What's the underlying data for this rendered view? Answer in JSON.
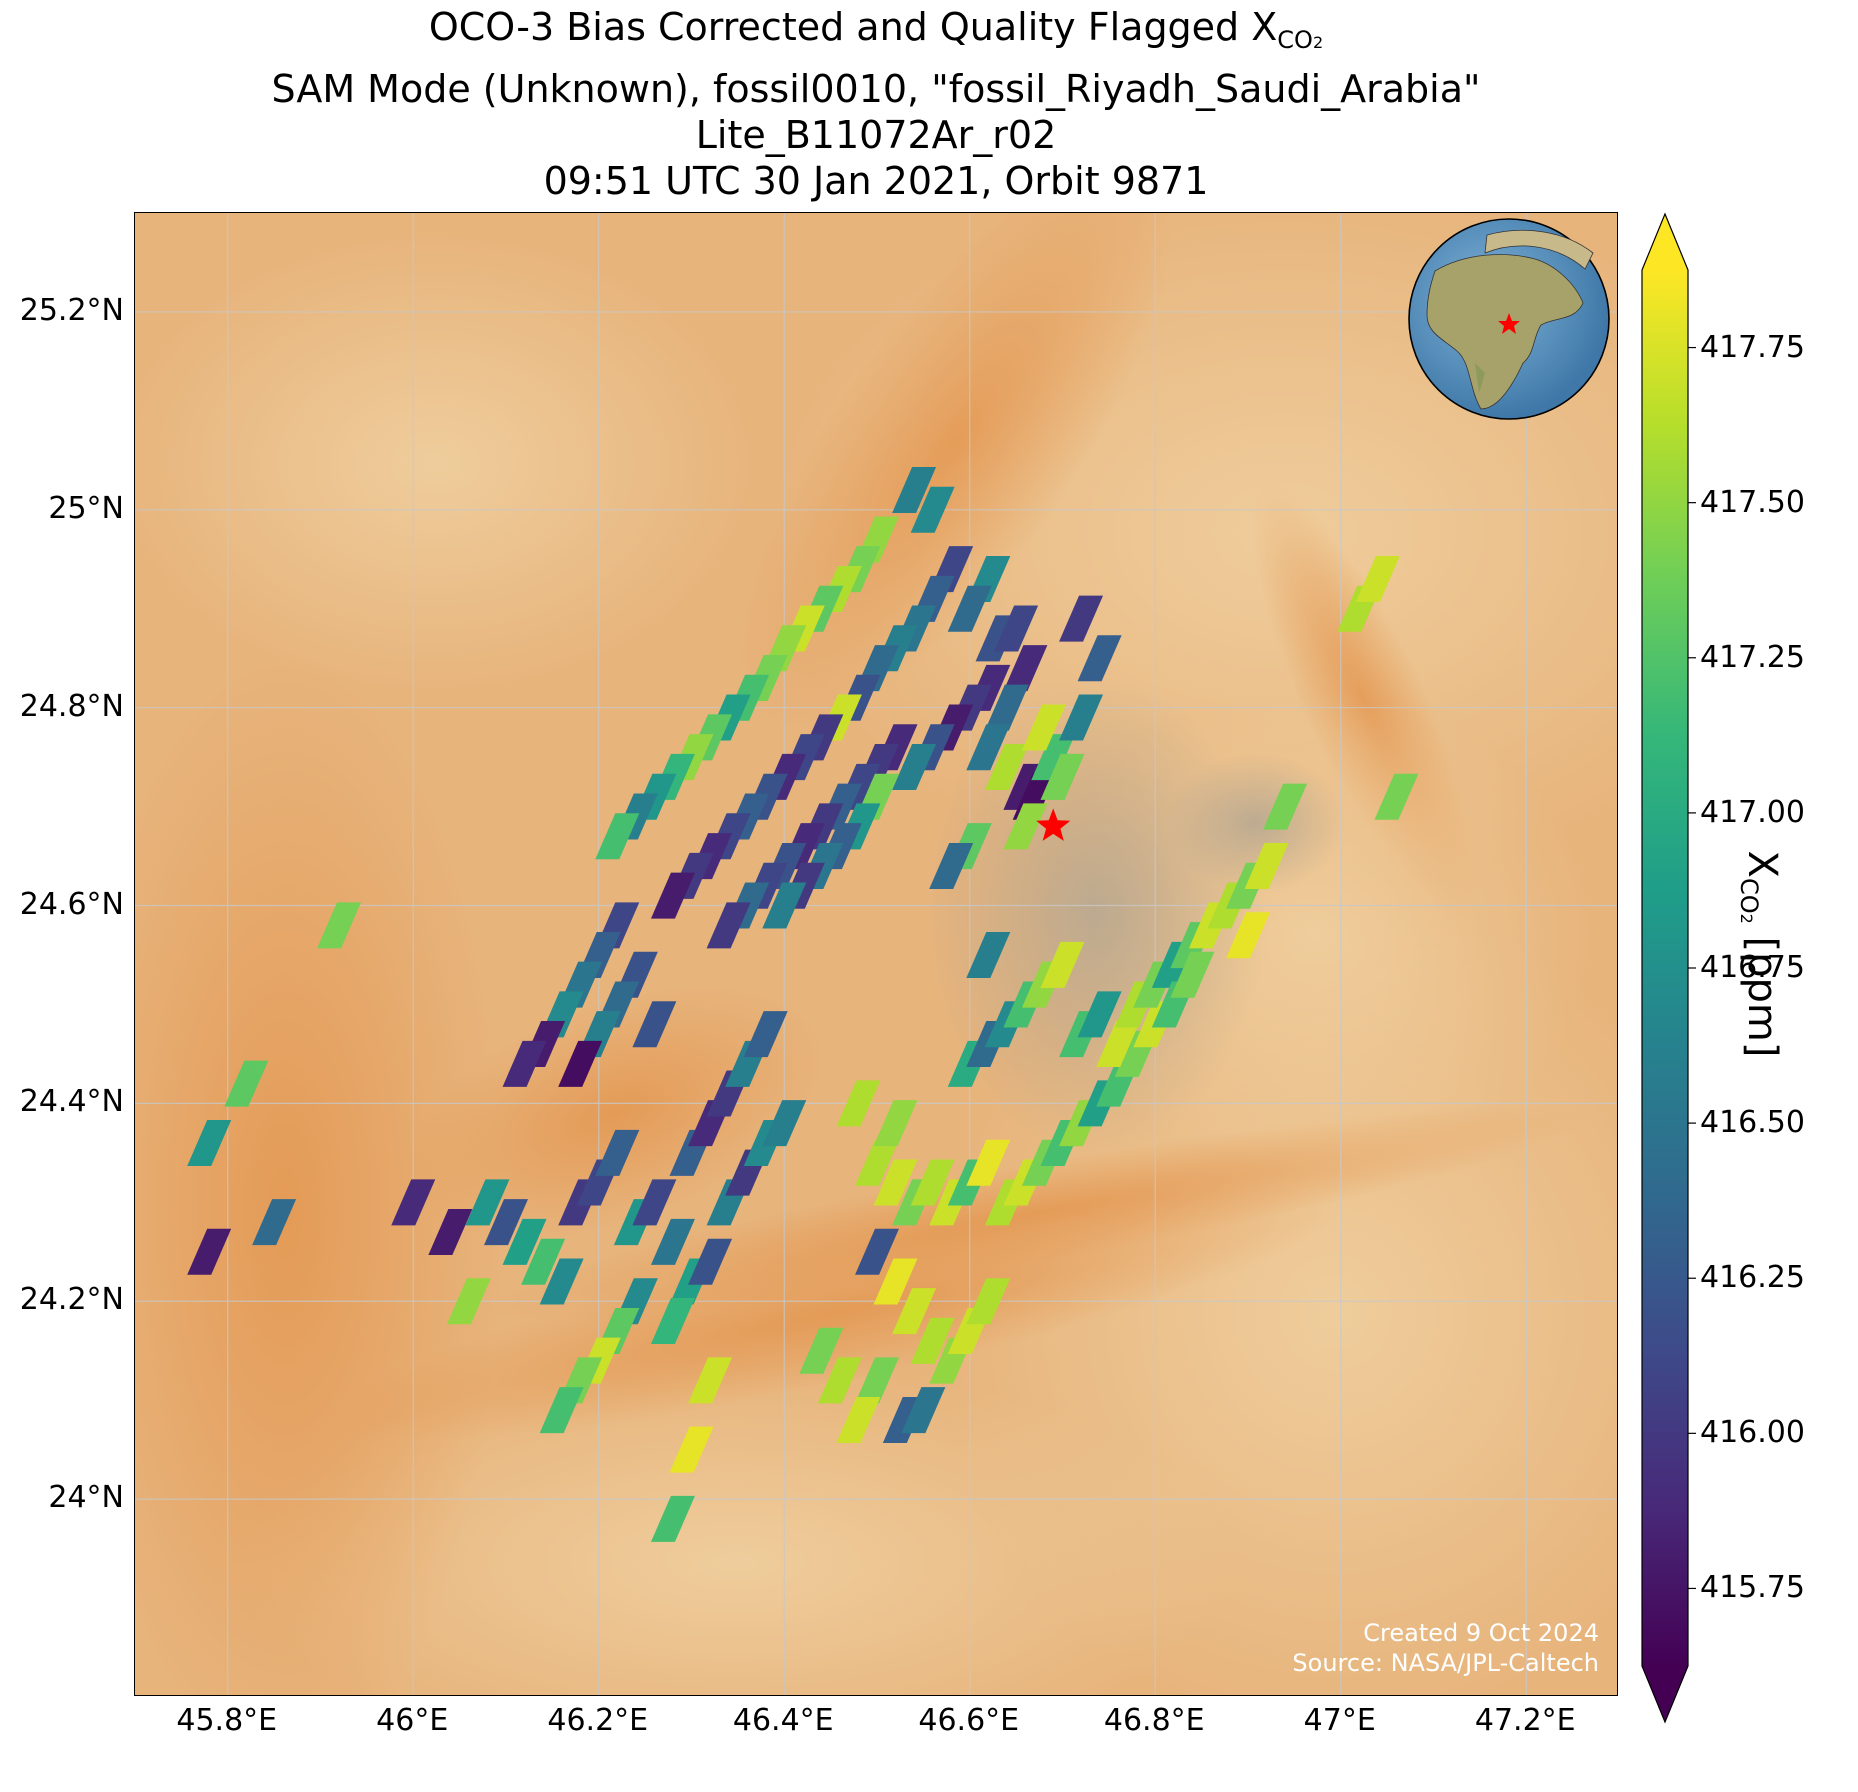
{
  "title": {
    "line1_prefix": "OCO-3 Bias Corrected and Quality Flagged X",
    "line1_subscript": "CO",
    "line1_subsubscript": "2",
    "line2": "SAM Mode (Unknown), fossil0010, \"fossil_Riyadh_Saudi_Arabia\"",
    "line3": "Lite_B11072Ar_r02",
    "line4": "09:51 UTC 30 Jan 2021, Orbit 9871"
  },
  "map": {
    "extent": {
      "lon_min": 45.7,
      "lon_max": 47.3,
      "lat_min": 23.8,
      "lat_max": 25.3
    },
    "lon_ticks": [
      {
        "value": 45.8,
        "label": "45.8°E"
      },
      {
        "value": 46.0,
        "label": "46°E"
      },
      {
        "value": 46.2,
        "label": "46.2°E"
      },
      {
        "value": 46.4,
        "label": "46.4°E"
      },
      {
        "value": 46.6,
        "label": "46.6°E"
      },
      {
        "value": 46.8,
        "label": "46.8°E"
      },
      {
        "value": 47.0,
        "label": "47°E"
      },
      {
        "value": 47.2,
        "label": "47.2°E"
      }
    ],
    "lat_ticks": [
      {
        "value": 24.0,
        "label": "24°N"
      },
      {
        "value": 24.2,
        "label": "24.2°N"
      },
      {
        "value": 24.4,
        "label": "24.4°N"
      },
      {
        "value": 24.6,
        "label": "24.6°N"
      },
      {
        "value": 24.8,
        "label": "24.8°N"
      },
      {
        "value": 25.0,
        "label": "25°N"
      },
      {
        "value": 25.2,
        "label": "25.2°N"
      }
    ],
    "target": {
      "name": "fossil_Riyadh_Saudi_Arabia",
      "lon": 46.69,
      "lat": 24.68,
      "marker": "red-star",
      "color": "#ff0000"
    },
    "grid": true,
    "grid_color": "#c8c8c8",
    "basemap": "satellite imagery (desert)",
    "inset": "globe-icon with red star over Arabian Peninsula (top-right)",
    "credit_line1": "Created 9 Oct 2024",
    "credit_line2": "Source: NASA/JPL-Caltech"
  },
  "colorbar": {
    "colormap": "viridis",
    "vmin": 415.625,
    "vmax": 417.875,
    "extend": "both",
    "ticks": [
      "415.75",
      "416.00",
      "416.25",
      "416.50",
      "416.75",
      "417.00",
      "417.25",
      "417.50",
      "417.75"
    ],
    "label_prefix": "X",
    "label_subscript": "CO",
    "label_subsubscript": "2",
    "label_suffix": " [ppm]",
    "stops": [
      "#440154",
      "#482878",
      "#3e4989",
      "#31688e",
      "#26828e",
      "#1f9e89",
      "#35b779",
      "#6ece58",
      "#b5de2b",
      "#fde725"
    ]
  },
  "chart_data": {
    "type": "scatter",
    "description": "XCO2 soundings (ppm) at lon/lat footprint centers",
    "xlabel": "",
    "ylabel": "",
    "x_unit": "degrees East",
    "y_unit": "degrees North",
    "points": [
      [
        46.54,
        25.02,
        416.6
      ],
      [
        46.56,
        25.0,
        416.7
      ],
      [
        46.5,
        24.97,
        417.5
      ],
      [
        46.48,
        24.94,
        417.4
      ],
      [
        46.46,
        24.92,
        417.6
      ],
      [
        46.44,
        24.9,
        417.3
      ],
      [
        46.42,
        24.88,
        417.7
      ],
      [
        46.4,
        24.86,
        417.5
      ],
      [
        46.38,
        24.83,
        417.4
      ],
      [
        46.36,
        24.81,
        417.2
      ],
      [
        46.34,
        24.79,
        416.9
      ],
      [
        46.32,
        24.77,
        417.3
      ],
      [
        46.3,
        24.75,
        417.5
      ],
      [
        46.28,
        24.73,
        417.1
      ],
      [
        46.26,
        24.71,
        416.8
      ],
      [
        46.24,
        24.69,
        416.6
      ],
      [
        46.22,
        24.67,
        417.2
      ],
      [
        46.58,
        24.94,
        416.1
      ],
      [
        46.56,
        24.91,
        416.3
      ],
      [
        46.54,
        24.88,
        416.5
      ],
      [
        46.52,
        24.86,
        416.6
      ],
      [
        46.5,
        24.84,
        416.4
      ],
      [
        46.48,
        24.81,
        416.2
      ],
      [
        46.46,
        24.79,
        417.7
      ],
      [
        46.44,
        24.77,
        416.0
      ],
      [
        46.42,
        24.75,
        416.1
      ],
      [
        46.4,
        24.73,
        415.9
      ],
      [
        46.38,
        24.71,
        416.2
      ],
      [
        46.36,
        24.69,
        416.3
      ],
      [
        46.34,
        24.67,
        416.1
      ],
      [
        46.32,
        24.65,
        415.9
      ],
      [
        46.3,
        24.63,
        416.0
      ],
      [
        46.28,
        24.61,
        415.8
      ],
      [
        46.52,
        24.76,
        415.9
      ],
      [
        46.5,
        24.74,
        416.0
      ],
      [
        46.48,
        24.72,
        416.1
      ],
      [
        46.46,
        24.7,
        416.3
      ],
      [
        46.44,
        24.68,
        416.0
      ],
      [
        46.42,
        24.66,
        415.9
      ],
      [
        46.4,
        24.64,
        416.2
      ],
      [
        46.38,
        24.62,
        416.1
      ],
      [
        46.36,
        24.6,
        416.4
      ],
      [
        46.34,
        24.58,
        416.0
      ],
      [
        46.62,
        24.82,
        415.9
      ],
      [
        46.6,
        24.8,
        416.0
      ],
      [
        46.58,
        24.78,
        415.8
      ],
      [
        46.56,
        24.76,
        416.2
      ],
      [
        46.54,
        24.74,
        416.6
      ],
      [
        46.5,
        24.71,
        417.4
      ],
      [
        46.48,
        24.68,
        416.8
      ],
      [
        46.46,
        24.66,
        416.3
      ],
      [
        46.44,
        24.64,
        416.5
      ],
      [
        46.42,
        24.62,
        416.0
      ],
      [
        46.4,
        24.6,
        416.6
      ],
      [
        46.62,
        24.93,
        416.7
      ],
      [
        46.6,
        24.9,
        416.4
      ],
      [
        46.63,
        24.87,
        416.2
      ],
      [
        46.65,
        24.88,
        416.1
      ],
      [
        46.66,
        24.84,
        415.9
      ],
      [
        46.64,
        24.8,
        416.4
      ],
      [
        46.62,
        24.76,
        416.5
      ],
      [
        46.64,
        24.74,
        417.6
      ],
      [
        46.66,
        24.72,
        415.8
      ],
      [
        46.67,
        24.71,
        415.7
      ],
      [
        46.69,
        24.75,
        417.2
      ],
      [
        46.7,
        24.73,
        417.4
      ],
      [
        46.72,
        24.79,
        416.6
      ],
      [
        46.68,
        24.78,
        417.7
      ],
      [
        46.72,
        24.89,
        416.0
      ],
      [
        46.74,
        24.85,
        416.3
      ],
      [
        46.66,
        24.68,
        417.5
      ],
      [
        46.6,
        24.66,
        417.3
      ],
      [
        46.58,
        24.64,
        416.4
      ],
      [
        46.22,
        24.58,
        416.1
      ],
      [
        46.2,
        24.55,
        416.3
      ],
      [
        46.18,
        24.52,
        416.5
      ],
      [
        46.16,
        24.49,
        416.7
      ],
      [
        46.14,
        24.46,
        415.8
      ],
      [
        46.12,
        24.44,
        415.9
      ],
      [
        46.24,
        24.53,
        416.2
      ],
      [
        46.22,
        24.5,
        416.4
      ],
      [
        46.2,
        24.47,
        416.6
      ],
      [
        46.18,
        24.44,
        415.7
      ],
      [
        46.26,
        24.48,
        416.2
      ],
      [
        45.92,
        24.58,
        417.4
      ],
      [
        45.82,
        24.42,
        417.3
      ],
      [
        45.78,
        24.36,
        416.8
      ],
      [
        45.78,
        24.25,
        415.8
      ],
      [
        45.85,
        24.28,
        416.4
      ],
      [
        46.0,
        24.3,
        415.9
      ],
      [
        46.04,
        24.27,
        415.8
      ],
      [
        46.06,
        24.2,
        417.5
      ],
      [
        46.08,
        24.3,
        416.8
      ],
      [
        46.1,
        24.28,
        416.2
      ],
      [
        46.12,
        24.26,
        416.9
      ],
      [
        46.14,
        24.24,
        417.2
      ],
      [
        46.16,
        24.22,
        416.7
      ],
      [
        46.18,
        24.3,
        416.0
      ],
      [
        46.2,
        24.32,
        416.1
      ],
      [
        46.22,
        24.35,
        416.3
      ],
      [
        46.24,
        24.28,
        416.8
      ],
      [
        46.26,
        24.3,
        416.1
      ],
      [
        46.28,
        24.26,
        416.5
      ],
      [
        46.3,
        24.22,
        416.9
      ],
      [
        46.32,
        24.24,
        416.2
      ],
      [
        46.34,
        24.3,
        416.6
      ],
      [
        46.36,
        24.33,
        416.0
      ],
      [
        46.38,
        24.36,
        416.7
      ],
      [
        46.4,
        24.38,
        416.6
      ],
      [
        46.3,
        24.35,
        416.3
      ],
      [
        46.32,
        24.38,
        415.9
      ],
      [
        46.34,
        24.41,
        416.0
      ],
      [
        46.36,
        24.44,
        416.6
      ],
      [
        46.38,
        24.47,
        416.3
      ],
      [
        46.24,
        24.2,
        416.7
      ],
      [
        46.22,
        24.17,
        417.3
      ],
      [
        46.2,
        24.14,
        417.7
      ],
      [
        46.18,
        24.12,
        417.4
      ],
      [
        46.16,
        24.09,
        417.2
      ],
      [
        46.28,
        24.18,
        417.1
      ],
      [
        46.5,
        24.34,
        417.6
      ],
      [
        46.52,
        24.32,
        417.7
      ],
      [
        46.54,
        24.3,
        417.4
      ],
      [
        46.56,
        24.32,
        417.6
      ],
      [
        46.58,
        24.3,
        417.7
      ],
      [
        46.6,
        24.32,
        417.2
      ],
      [
        46.62,
        24.34,
        417.8
      ],
      [
        46.64,
        24.3,
        417.6
      ],
      [
        46.66,
        24.32,
        417.7
      ],
      [
        46.68,
        24.34,
        417.4
      ],
      [
        46.7,
        24.36,
        417.2
      ],
      [
        46.72,
        24.38,
        417.5
      ],
      [
        46.74,
        24.4,
        416.9
      ],
      [
        46.76,
        24.42,
        417.2
      ],
      [
        46.78,
        24.45,
        417.4
      ],
      [
        46.8,
        24.48,
        417.7
      ],
      [
        46.6,
        24.44,
        417.0
      ],
      [
        46.62,
        24.46,
        416.4
      ],
      [
        46.64,
        24.48,
        416.7
      ],
      [
        46.66,
        24.5,
        417.2
      ],
      [
        46.68,
        24.52,
        417.5
      ],
      [
        46.7,
        24.54,
        417.7
      ],
      [
        46.72,
        24.47,
        417.2
      ],
      [
        46.74,
        24.49,
        416.8
      ],
      [
        46.76,
        24.46,
        417.7
      ],
      [
        46.78,
        24.5,
        417.6
      ],
      [
        46.8,
        24.52,
        417.4
      ],
      [
        46.82,
        24.54,
        416.9
      ],
      [
        46.84,
        24.56,
        417.3
      ],
      [
        46.86,
        24.58,
        417.7
      ],
      [
        46.88,
        24.6,
        417.6
      ],
      [
        46.9,
        24.62,
        417.4
      ],
      [
        46.92,
        24.64,
        417.7
      ],
      [
        46.94,
        24.7,
        417.4
      ],
      [
        47.02,
        24.9,
        417.6
      ],
      [
        47.04,
        24.93,
        417.7
      ],
      [
        47.06,
        24.71,
        417.4
      ],
      [
        46.9,
        24.57,
        417.8
      ],
      [
        46.82,
        24.5,
        417.2
      ],
      [
        46.84,
        24.53,
        417.4
      ],
      [
        46.62,
        24.55,
        416.6
      ],
      [
        46.48,
        24.4,
        417.6
      ],
      [
        46.52,
        24.38,
        417.5
      ],
      [
        46.5,
        24.25,
        416.2
      ],
      [
        46.52,
        24.22,
        417.8
      ],
      [
        46.54,
        24.19,
        417.7
      ],
      [
        46.56,
        24.16,
        417.6
      ],
      [
        46.58,
        24.14,
        417.5
      ],
      [
        46.6,
        24.17,
        417.7
      ],
      [
        46.62,
        24.2,
        417.6
      ],
      [
        46.5,
        24.12,
        417.4
      ],
      [
        46.44,
        24.15,
        417.4
      ],
      [
        46.46,
        24.12,
        417.6
      ],
      [
        46.48,
        24.08,
        417.7
      ],
      [
        46.53,
        24.08,
        416.3
      ],
      [
        46.55,
        24.09,
        416.5
      ],
      [
        46.32,
        24.12,
        417.7
      ],
      [
        46.3,
        24.05,
        417.8
      ],
      [
        46.28,
        23.98,
        417.2
      ]
    ]
  }
}
